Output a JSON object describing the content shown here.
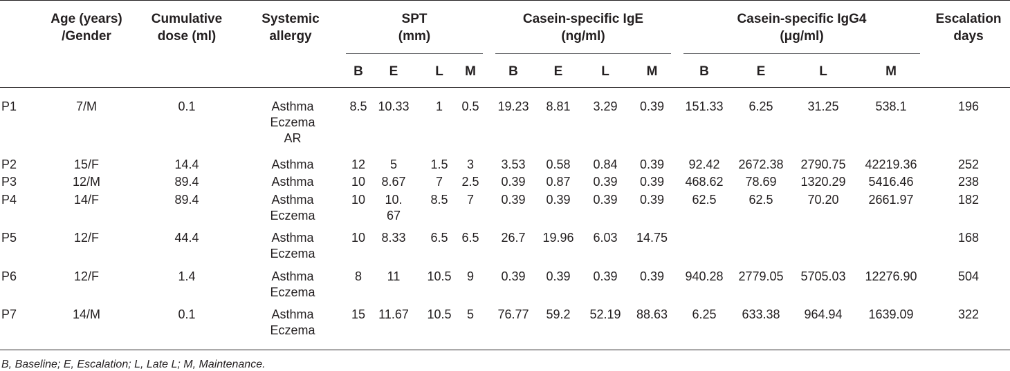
{
  "headers": {
    "age": "Age (years)\n/Gender",
    "dose": "Cumulative\ndose (ml)",
    "allergy": "Systemic\nallergy",
    "spt": "SPT\n(mm)",
    "ige": "Casein-specific IgE\n(ng/ml)",
    "igg4": "Casein-specific IgG4\n(μg/ml)",
    "escalation": "Escalation\ndays",
    "sub": [
      "B",
      "E",
      "L",
      "M",
      "B",
      "E",
      "L",
      "M",
      "B",
      "E",
      "L",
      "M"
    ]
  },
  "rows": [
    {
      "id": "P1",
      "age": "7/M",
      "dose": "0.1",
      "allergy": "Asthma\nEczema\nAR",
      "spt": [
        "8.5",
        "10.33",
        "1",
        "0.5"
      ],
      "ige": [
        "19.23",
        "8.81",
        "3.29",
        "0.39"
      ],
      "igg4": [
        "151.33",
        "6.25",
        "31.25",
        "538.1"
      ],
      "days": "196"
    },
    {
      "id": "P2",
      "age": "15/F",
      "dose": "14.4",
      "allergy": "Asthma",
      "spt": [
        "12",
        "5",
        "1.5",
        "3"
      ],
      "ige": [
        "3.53",
        "0.58",
        "0.84",
        "0.39"
      ],
      "igg4": [
        "92.42",
        "2672.38",
        "2790.75",
        "42219.36"
      ],
      "days": "252"
    },
    {
      "id": "P3",
      "age": "12/M",
      "dose": "89.4",
      "allergy": "Asthma",
      "spt": [
        "10",
        "8.67",
        "7",
        "2.5"
      ],
      "ige": [
        "0.39",
        "0.87",
        "0.39",
        "0.39"
      ],
      "igg4": [
        "468.62",
        "78.69",
        "1320.29",
        "5416.46"
      ],
      "days": "238"
    },
    {
      "id": "P4",
      "age": "14/F",
      "dose": "89.4",
      "allergy": "Asthma\nEczema",
      "spt": [
        "10",
        "10.\n67",
        "8.5",
        "7"
      ],
      "ige": [
        "0.39",
        "0.39",
        "0.39",
        "0.39"
      ],
      "igg4": [
        "62.5",
        "62.5",
        "70.20",
        "2661.97"
      ],
      "days": "182"
    },
    {
      "id": "P5",
      "age": "12/F",
      "dose": "44.4",
      "allergy": "Asthma\nEczema",
      "spt": [
        "10",
        "8.33",
        "6.5",
        "6.5"
      ],
      "ige": [
        "26.7",
        "19.96",
        "6.03",
        "14.75"
      ],
      "igg4": [
        "",
        "",
        "",
        ""
      ],
      "days": "168"
    },
    {
      "id": "P6",
      "age": "12/F",
      "dose": "1.4",
      "allergy": "Asthma\nEczema",
      "spt": [
        "8",
        "11",
        "10.5",
        "9"
      ],
      "ige": [
        "0.39",
        "0.39",
        "0.39",
        "0.39"
      ],
      "igg4": [
        "940.28",
        "2779.05",
        "5705.03",
        "12276.90"
      ],
      "days": "504"
    },
    {
      "id": "P7",
      "age": "14/M",
      "dose": "0.1",
      "allergy": "Asthma\nEczema",
      "spt": [
        "15",
        "11.67",
        "10.5",
        "5"
      ],
      "ige": [
        "76.77",
        "59.2",
        "52.19",
        "88.63"
      ],
      "igg4": [
        "6.25",
        "633.38",
        "964.94",
        "1639.09"
      ],
      "days": "322"
    }
  ],
  "footnote": "B, Baseline; E, Escalation; L, Late L; M, Maintenance."
}
